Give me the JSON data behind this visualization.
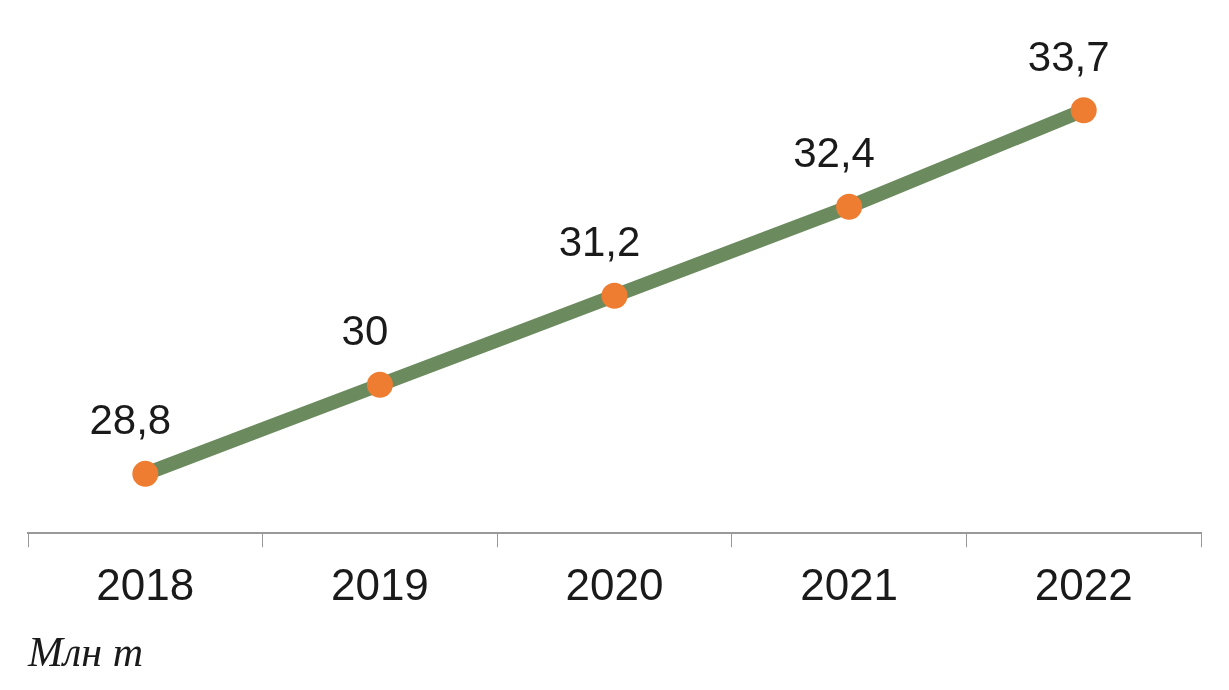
{
  "chart_data": {
    "type": "line",
    "categories": [
      "2018",
      "2019",
      "2020",
      "2021",
      "2022"
    ],
    "series": [
      {
        "color": "#6b8a5e",
        "colors": [
          "#ee7d31",
          "#ee7d31",
          "#ee7d31",
          "#ee7d31",
          "#ee7d31"
        ],
        "values": [
          28.8,
          30,
          31.2,
          32.4,
          33.7
        ],
        "value_labels": [
          "28,8",
          "30",
          "31,2",
          "32,4",
          "33,7"
        ]
      }
    ],
    "marker": "circle",
    "line_style": "solid",
    "grid": false,
    "legend": false,
    "annotations": [
      "Млн т"
    ]
  }
}
